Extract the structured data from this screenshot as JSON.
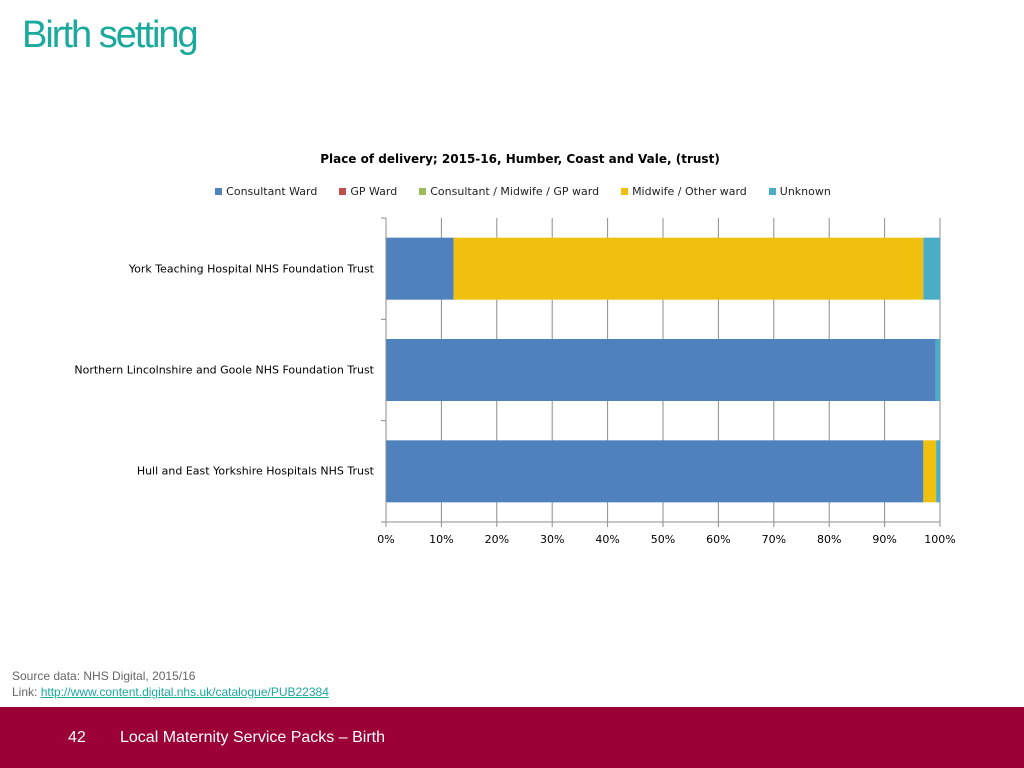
{
  "page": {
    "title": "Birth setting",
    "source_line": "Source data: NHS Digital, 2015/16",
    "link_prefix": "Link: ",
    "link_text": "http://www.content.digital.nhs.uk/catalogue/PUB22384",
    "page_number": "42",
    "footer_text": "Local Maternity Service Packs – Birth"
  },
  "chart_data": {
    "type": "bar",
    "orientation": "horizontal",
    "stacked": "100%",
    "title": "Place of delivery; 2015-16, Humber, Coast and Vale, (trust)",
    "legend_position": "top",
    "grid": true,
    "xlim": [
      0,
      100
    ],
    "x_ticks": [
      "0%",
      "10%",
      "20%",
      "30%",
      "40%",
      "50%",
      "60%",
      "70%",
      "80%",
      "90%",
      "100%"
    ],
    "categories": [
      "York Teaching Hospital NHS Foundation Trust",
      "Northern Lincolnshire and Goole NHS Foundation Trust",
      "Hull and East Yorkshire Hospitals NHS Trust"
    ],
    "series": [
      {
        "name": "Consultant Ward",
        "color": "#4f81bd",
        "values": [
          12.2,
          99.2,
          97.0
        ]
      },
      {
        "name": "GP Ward",
        "color": "#c0504d",
        "values": [
          0,
          0,
          0
        ]
      },
      {
        "name": "Consultant / Midwife / GP ward",
        "color": "#9bbb59",
        "values": [
          0,
          0,
          0
        ]
      },
      {
        "name": "Midwife / Other ward",
        "color": "#f0c00f",
        "values": [
          84.8,
          0,
          2.3
        ]
      },
      {
        "name": "Unknown",
        "color": "#4bacc6",
        "values": [
          3.0,
          0.8,
          0.7
        ]
      }
    ]
  }
}
